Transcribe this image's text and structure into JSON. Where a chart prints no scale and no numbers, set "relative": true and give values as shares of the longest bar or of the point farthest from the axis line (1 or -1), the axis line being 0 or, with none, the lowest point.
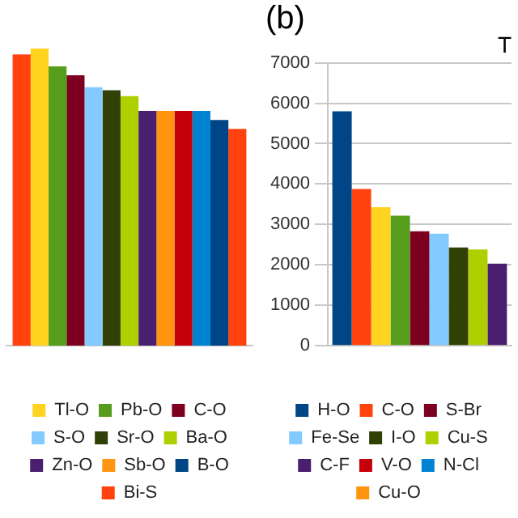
{
  "chart_data": [
    {
      "type": "bar",
      "relative": true,
      "categories": [
        null
      ],
      "legend": "bottom",
      "series": [
        {
          "color": "#ff420e",
          "values": [
            0.98
          ]
        },
        {
          "name": "Tl-O",
          "color": "#ffd320",
          "values": [
            1
          ]
        },
        {
          "name": "Pb-O",
          "color": "#579d1c",
          "values": [
            0.94
          ]
        },
        {
          "name": "C-O",
          "color": "#7e0021",
          "values": [
            0.91
          ]
        },
        {
          "name": "S-O",
          "color": "#83caff",
          "values": [
            0.87
          ]
        },
        {
          "name": "Sr-O",
          "color": "#314004",
          "values": [
            0.86
          ]
        },
        {
          "name": "Ba-O",
          "color": "#aecf00",
          "values": [
            0.84
          ]
        },
        {
          "name": "Zn-O",
          "color": "#4b1f6f",
          "values": [
            0.79
          ]
        },
        {
          "name": "Sb-O",
          "color": "#ff950e",
          "values": [
            0.79
          ]
        },
        {
          "color": "#c5000b",
          "values": [
            0.79
          ]
        },
        {
          "color": "#0084d1",
          "values": [
            0.79
          ]
        },
        {
          "name": "B-O",
          "color": "#004586",
          "values": [
            0.76
          ]
        },
        {
          "name": "Bi-S",
          "color": "#ff420e",
          "values": [
            0.73
          ]
        }
      ]
    },
    {
      "type": "bar",
      "title": "T",
      "annotations": [
        "(b)"
      ],
      "categories": [
        null
      ],
      "legend": "bottom",
      "grid": "y",
      "ylim": [
        0,
        7000
      ],
      "yticks": [
        0,
        1000,
        2000,
        3000,
        4000,
        5000,
        6000,
        7000
      ],
      "series": [
        {
          "name": "H-O",
          "color": "#004586",
          "values": [
            5800
          ]
        },
        {
          "name": "C-O",
          "color": "#ff420e",
          "values": [
            3880
          ]
        },
        {
          "color": "#ffd320",
          "values": [
            3430
          ]
        },
        {
          "color": "#579d1c",
          "values": [
            3220
          ]
        },
        {
          "name": "S-Br",
          "color": "#7e0021",
          "values": [
            2830
          ]
        },
        {
          "name": "Fe-Se",
          "color": "#83caff",
          "values": [
            2770
          ]
        },
        {
          "name": "I-O",
          "color": "#314004",
          "values": [
            2430
          ]
        },
        {
          "name": "Cu-S",
          "color": "#aecf00",
          "values": [
            2380
          ]
        },
        {
          "name": "C-F",
          "color": "#4b1f6f",
          "values": [
            2030
          ]
        },
        {
          "name": "V-O",
          "color": "#c5000b",
          "values": [
            null
          ]
        },
        {
          "name": "N-Cl",
          "color": "#0084d1",
          "values": [
            null
          ]
        },
        {
          "name": "Cu-O",
          "color": "#ff950e",
          "values": [
            null
          ]
        }
      ]
    }
  ]
}
